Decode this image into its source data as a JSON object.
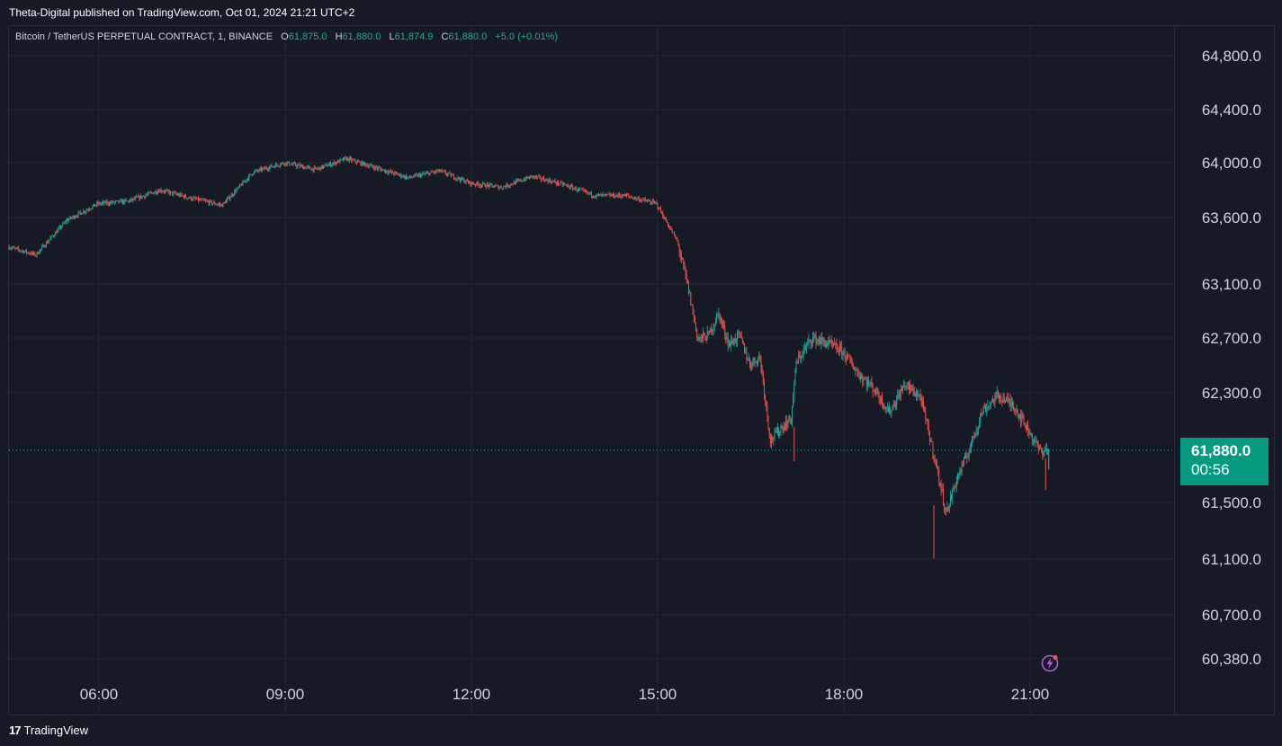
{
  "header": {
    "publisher_line": "Theta-Digital published on TradingView.com, Oct 01, 2024 21:21 UTC+2"
  },
  "legend": {
    "symbol": "Bitcoin / TetherUS PERPETUAL CONTRACT, 1, BINANCE",
    "o_label": "O",
    "o_value": "61,875.0",
    "h_label": "H",
    "h_value": "61,880.0",
    "l_label": "L",
    "l_value": "61,874.9",
    "c_label": "C",
    "c_value": "61,880.0",
    "change": "+5.0 (+0.01%)"
  },
  "current_price": {
    "price": "61,880.0",
    "countdown": "00:56",
    "color": "#089981"
  },
  "footer": {
    "brand": "TradingView",
    "logo_mark": "17"
  },
  "colors": {
    "background": "#161a25",
    "grid": "#232734",
    "up": "#26a69a",
    "down": "#ef5350",
    "text": "#d1d4dc"
  },
  "chart_data": {
    "type": "line",
    "style": "candlestick",
    "interval": "1 minute",
    "x_tick_labels": [
      "06:00",
      "09:00",
      "12:00",
      "15:00",
      "18:00",
      "21:00"
    ],
    "y_tick_labels": [
      "64,800.0",
      "64,400.0",
      "64,000.0",
      "63,600.0",
      "63,100.0",
      "62,700.0",
      "62,300.0",
      "61,500.0",
      "61,100.0",
      "60,700.0",
      "60,380.0"
    ],
    "y_tick_values": [
      64800,
      64400,
      64000,
      63600,
      63100,
      62700,
      62300,
      61500,
      61100,
      60700,
      60380
    ],
    "series": [
      {
        "x": [
          "04:33",
          "05:00",
          "05:30",
          "06:00",
          "06:30",
          "07:00",
          "07:30",
          "08:00",
          "08:30",
          "09:00",
          "09:30",
          "10:00",
          "10:30",
          "11:00",
          "11:30",
          "12:00",
          "12:30",
          "13:00",
          "13:30",
          "14:00",
          "14:30",
          "15:00",
          "15:20",
          "15:30",
          "15:40",
          "15:50",
          "16:00",
          "16:10",
          "16:20",
          "16:30",
          "16:40",
          "16:50",
          "17:00",
          "17:10",
          "17:15",
          "17:30",
          "17:45",
          "18:00",
          "18:15",
          "18:30",
          "18:45",
          "19:00",
          "19:15",
          "19:30",
          "19:40",
          "19:50",
          "20:00",
          "20:15",
          "20:30",
          "20:45",
          "21:00",
          "21:10",
          "21:18"
        ],
        "y": [
          63380,
          63320,
          63580,
          63700,
          63720,
          63800,
          63740,
          63690,
          63930,
          64000,
          63950,
          64030,
          63960,
          63890,
          63940,
          63850,
          63820,
          63900,
          63840,
          63760,
          63760,
          63700,
          63420,
          63090,
          62690,
          62720,
          62880,
          62650,
          62720,
          62510,
          62560,
          61950,
          62040,
          62110,
          62520,
          62700,
          62660,
          62600,
          62440,
          62330,
          62160,
          62360,
          62270,
          61780,
          61420,
          61670,
          61840,
          62170,
          62280,
          62210,
          62020,
          61880,
          61880
        ]
      }
    ],
    "current_value": 61880,
    "ylim": [
      60300,
      65000
    ]
  }
}
